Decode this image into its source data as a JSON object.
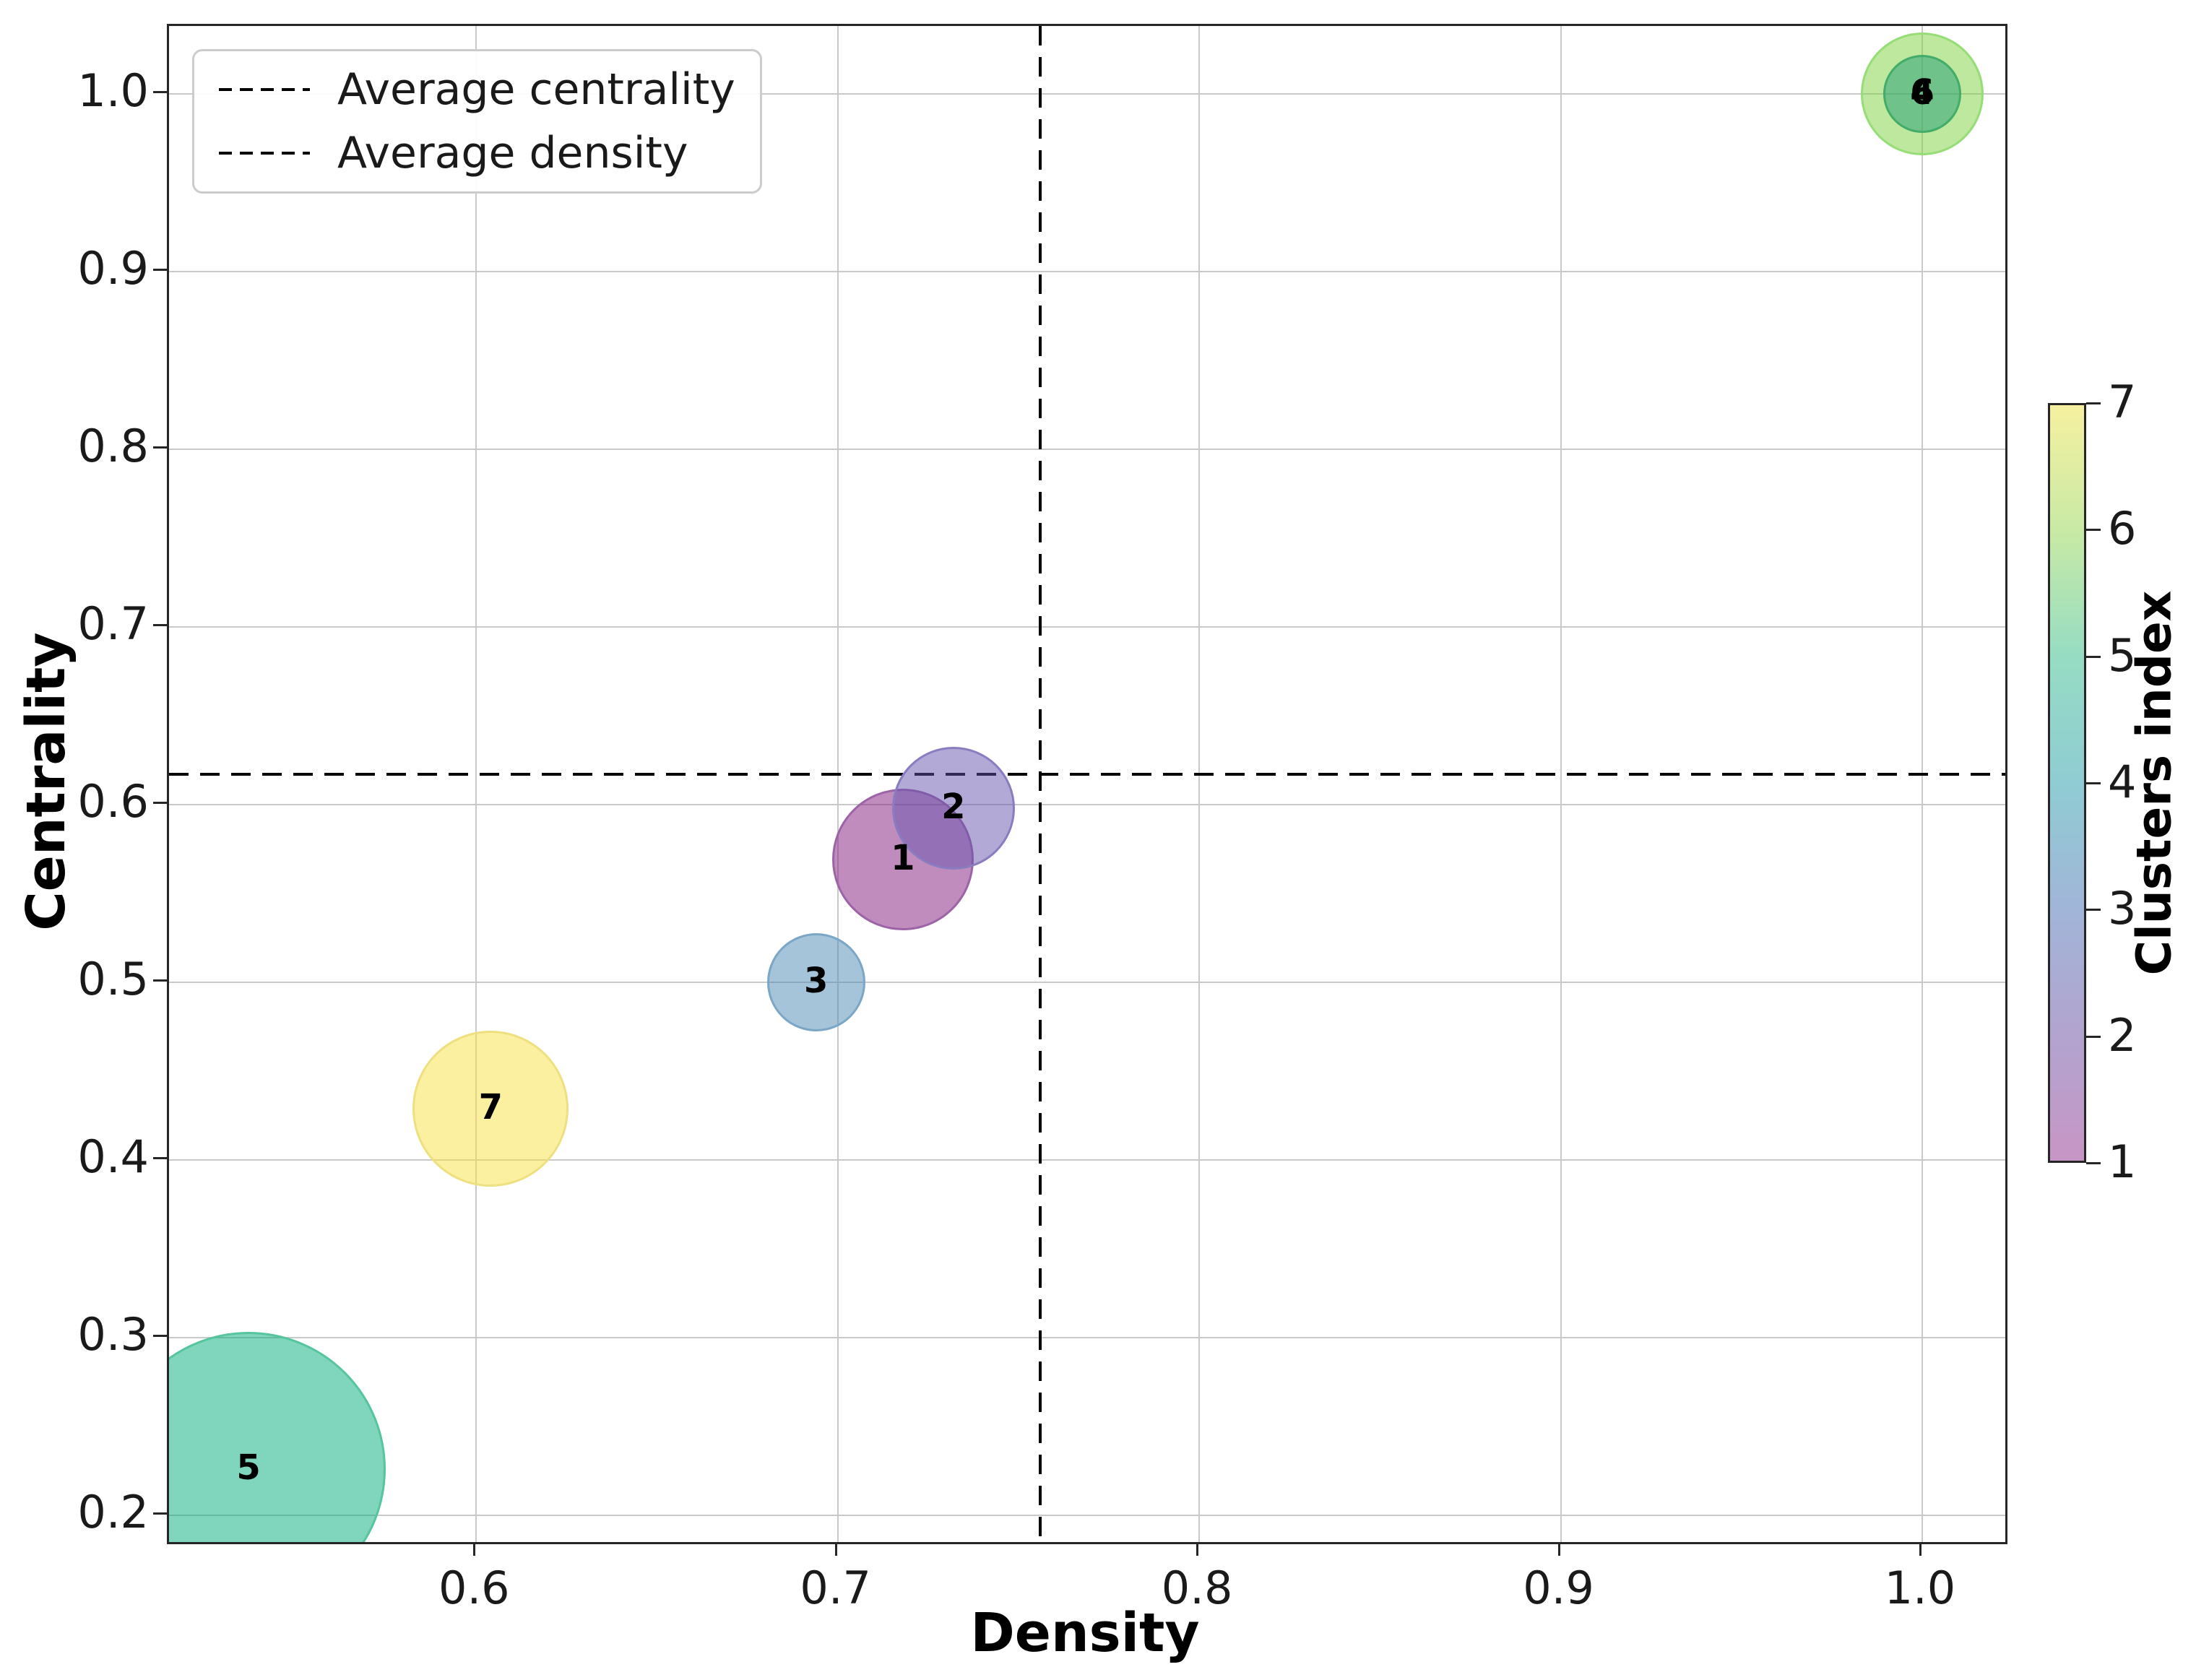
{
  "figure": {
    "background": "#ffffff"
  },
  "axes": {
    "x": {
      "label": "Density",
      "tick_labels": [
        "0.6",
        "0.7",
        "0.8",
        "0.9",
        "1.0"
      ],
      "tick_values": [
        0.6,
        0.7,
        0.8,
        0.9,
        1.0
      ]
    },
    "y": {
      "label": "Centrality",
      "tick_labels": [
        "0.2",
        "0.3",
        "0.4",
        "0.5",
        "0.6",
        "0.7",
        "0.8",
        "0.9",
        "1.0"
      ],
      "tick_values": [
        0.2,
        0.3,
        0.4,
        0.5,
        0.6,
        0.7,
        0.8,
        0.9,
        1.0
      ]
    }
  },
  "legend": {
    "items": [
      {
        "label": "Average centrality",
        "style": "dashed-line"
      },
      {
        "label": "Average density",
        "style": "dashed-line"
      }
    ]
  },
  "colorbar": {
    "label": "Clusters index",
    "tick_labels": [
      "1",
      "2",
      "3",
      "4",
      "5",
      "6",
      "7"
    ],
    "tick_values": [
      1,
      2,
      3,
      4,
      5,
      6,
      7
    ],
    "gradient_bottom_to_top": [
      "#c795c5",
      "#b2a4cf",
      "#a1b5d8",
      "#8fccd3",
      "#96dcc3",
      "#c8eaa5",
      "#f6f0a0"
    ]
  },
  "chart_data": {
    "type": "bubble",
    "xlabel": "Density",
    "ylabel": "Centrality",
    "xlim": [
      0.515,
      1.023
    ],
    "ylim": [
      0.185,
      1.038
    ],
    "grid": true,
    "legend_position": "upper-left",
    "avg_density": 0.756,
    "avg_centrality": 0.617,
    "points": [
      {
        "cluster": "1",
        "density": 0.718,
        "centrality": 0.569,
        "radius_px": 98,
        "fill": "rgba(129,25,125,0.5)",
        "edge": "#9c63a6",
        "z": 2
      },
      {
        "cluster": "2",
        "density": 0.732,
        "centrality": 0.598,
        "radius_px": 85,
        "fill": "rgba(103,83,173,0.5)",
        "edge": "#8a7cc0",
        "z": 3
      },
      {
        "cluster": "3",
        "density": 0.694,
        "centrality": 0.5,
        "radius_px": 68,
        "fill": "rgba(75,137,181,0.5)",
        "edge": "#7ba6c6",
        "z": 2
      },
      {
        "cluster": "4",
        "density": 1.0,
        "centrality": 1.0,
        "radius_px": 54,
        "fill": "rgba(33,156,116,0.5)",
        "edge": "#42ac68",
        "z": 3
      },
      {
        "cluster": "5",
        "density": 0.537,
        "centrality": 0.226,
        "radius_px": 190,
        "fill": "rgba(1,171,123,0.5)",
        "edge": "#56c59e",
        "z": 1
      },
      {
        "cluster": "6",
        "density": 1.0,
        "centrality": 1.0,
        "radius_px": 85,
        "fill": "rgba(123,209,61,0.5)",
        "edge": "#96dd77",
        "z": 2
      },
      {
        "cluster": "7",
        "density": 0.604,
        "centrality": 0.429,
        "radius_px": 108,
        "fill": "rgba(245,225,65,0.5)",
        "edge": "#eee080",
        "z": 2
      }
    ]
  }
}
